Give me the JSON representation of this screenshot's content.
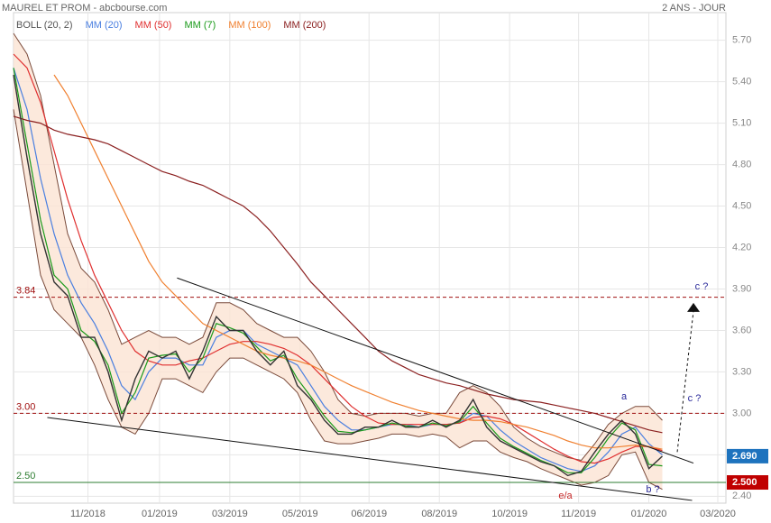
{
  "chart_data": {
    "type": "line",
    "title": "MAUREL ET PROM - abcbourse.com",
    "subtitle": "2 ANS - JOUR",
    "xlim": [
      0,
      527
    ],
    "ylim": [
      2.35,
      5.9
    ],
    "grid": true,
    "xticks": [
      {
        "value": 55,
        "label": "11/2018"
      },
      {
        "value": 108,
        "label": "01/2019"
      },
      {
        "value": 160,
        "label": "03/2019"
      },
      {
        "value": 212,
        "label": "05/2019"
      },
      {
        "value": 263,
        "label": "06/2019"
      },
      {
        "value": 315,
        "label": "08/2019"
      },
      {
        "value": 367,
        "label": "10/2019"
      },
      {
        "value": 418,
        "label": "11/2019"
      },
      {
        "value": 470,
        "label": "01/2020"
      },
      {
        "value": 521,
        "label": "03/2020"
      }
    ],
    "yticks": [
      {
        "value": 5.7,
        "label": "5.70"
      },
      {
        "value": 5.4,
        "label": "5.40"
      },
      {
        "value": 5.1,
        "label": "5.10"
      },
      {
        "value": 4.8,
        "label": "4.80"
      },
      {
        "value": 4.5,
        "label": "4.50"
      },
      {
        "value": 4.2,
        "label": "4.20"
      },
      {
        "value": 3.9,
        "label": "3.90"
      },
      {
        "value": 3.6,
        "label": "3.60"
      },
      {
        "value": 3.3,
        "label": "3.30"
      },
      {
        "value": 3.0,
        "label": "3.00"
      },
      {
        "value": 2.7,
        "label": "2.70"
      },
      {
        "value": 2.4,
        "label": "2.40"
      }
    ],
    "x": [
      0,
      10,
      20,
      30,
      40,
      50,
      60,
      70,
      80,
      90,
      100,
      110,
      120,
      130,
      140,
      150,
      160,
      170,
      180,
      190,
      200,
      210,
      220,
      230,
      240,
      250,
      260,
      270,
      280,
      290,
      300,
      310,
      320,
      330,
      340,
      350,
      360,
      370,
      380,
      390,
      400,
      410,
      420,
      430,
      440,
      450,
      460,
      470,
      480
    ],
    "price": {
      "color": "#333333",
      "values": [
        5.45,
        4.85,
        4.3,
        3.95,
        3.85,
        3.55,
        3.55,
        3.3,
        2.95,
        3.25,
        3.45,
        3.4,
        3.45,
        3.25,
        3.45,
        3.7,
        3.6,
        3.6,
        3.45,
        3.35,
        3.45,
        3.2,
        3.1,
        2.95,
        2.85,
        2.85,
        2.9,
        2.9,
        2.95,
        2.9,
        2.9,
        2.95,
        2.9,
        2.95,
        3.1,
        2.9,
        2.8,
        2.75,
        2.7,
        2.65,
        2.62,
        2.55,
        2.58,
        2.72,
        2.85,
        2.95,
        2.85,
        2.6,
        2.69
      ]
    },
    "series": [
      {
        "name": "BOLL (20, 2)",
        "color": "#7a4a3a",
        "fill": "#fbe3d3",
        "values": [
          5.75,
          5.6,
          5.3,
          4.8,
          4.3,
          4.05,
          3.95,
          3.75,
          3.5,
          3.55,
          3.6,
          3.55,
          3.55,
          3.5,
          3.55,
          3.8,
          3.8,
          3.75,
          3.65,
          3.6,
          3.55,
          3.55,
          3.45,
          3.3,
          3.1,
          3.0,
          2.98,
          3.0,
          3.0,
          3.0,
          2.98,
          3.0,
          3.0,
          3.15,
          3.2,
          3.15,
          3.05,
          2.9,
          2.82,
          2.76,
          2.72,
          2.68,
          2.66,
          2.78,
          2.92,
          3.0,
          3.05,
          3.05,
          2.95
        ],
        "lower": [
          5.2,
          4.6,
          4.0,
          3.75,
          3.65,
          3.55,
          3.35,
          3.1,
          2.9,
          2.85,
          3.0,
          3.25,
          3.25,
          3.2,
          3.15,
          3.3,
          3.4,
          3.4,
          3.35,
          3.3,
          3.25,
          3.15,
          2.95,
          2.8,
          2.78,
          2.78,
          2.8,
          2.82,
          2.85,
          2.85,
          2.83,
          2.85,
          2.83,
          2.75,
          2.8,
          2.8,
          2.72,
          2.68,
          2.65,
          2.6,
          2.56,
          2.52,
          2.48,
          2.5,
          2.55,
          2.7,
          2.72,
          2.5,
          2.45
        ]
      },
      {
        "name": "MM (20)",
        "color": "#4a7fe0",
        "values": [
          5.5,
          5.2,
          4.7,
          4.3,
          4.0,
          3.8,
          3.65,
          3.45,
          3.2,
          3.1,
          3.3,
          3.4,
          3.4,
          3.35,
          3.35,
          3.55,
          3.6,
          3.6,
          3.5,
          3.45,
          3.4,
          3.35,
          3.2,
          3.05,
          2.95,
          2.88,
          2.88,
          2.9,
          2.92,
          2.92,
          2.9,
          2.92,
          2.92,
          2.93,
          3.0,
          2.98,
          2.88,
          2.8,
          2.74,
          2.68,
          2.64,
          2.6,
          2.58,
          2.62,
          2.72,
          2.85,
          2.9,
          2.78,
          2.7
        ]
      },
      {
        "name": "MM (50)",
        "color": "#e03030",
        "values": [
          5.6,
          5.5,
          5.25,
          4.9,
          4.55,
          4.25,
          4.0,
          3.8,
          3.6,
          3.45,
          3.38,
          3.35,
          3.35,
          3.38,
          3.4,
          3.45,
          3.5,
          3.52,
          3.52,
          3.5,
          3.47,
          3.42,
          3.35,
          3.25,
          3.15,
          3.05,
          2.98,
          2.93,
          2.92,
          2.92,
          2.92,
          2.92,
          2.92,
          2.93,
          2.97,
          2.98,
          2.96,
          2.92,
          2.86,
          2.8,
          2.74,
          2.69,
          2.65,
          2.64,
          2.67,
          2.72,
          2.76,
          2.76,
          2.73
        ]
      },
      {
        "name": "MM (7)",
        "color": "#1a9a1a",
        "values": [
          5.5,
          4.95,
          4.4,
          4.0,
          3.9,
          3.6,
          3.52,
          3.35,
          3.0,
          3.15,
          3.4,
          3.42,
          3.43,
          3.3,
          3.4,
          3.65,
          3.62,
          3.58,
          3.48,
          3.38,
          3.42,
          3.25,
          3.12,
          2.98,
          2.87,
          2.86,
          2.88,
          2.9,
          2.93,
          2.91,
          2.9,
          2.93,
          2.91,
          2.94,
          3.05,
          2.93,
          2.82,
          2.76,
          2.71,
          2.66,
          2.62,
          2.57,
          2.57,
          2.68,
          2.82,
          2.93,
          2.88,
          2.63,
          2.62
        ]
      },
      {
        "name": "MM (100)",
        "color": "#f08030",
        "values": [
          null,
          null,
          null,
          5.45,
          5.3,
          5.1,
          4.9,
          4.7,
          4.5,
          4.3,
          4.1,
          3.95,
          3.85,
          3.75,
          3.65,
          3.6,
          3.55,
          3.5,
          3.45,
          3.42,
          3.4,
          3.38,
          3.35,
          3.3,
          3.25,
          3.2,
          3.16,
          3.12,
          3.08,
          3.05,
          3.02,
          3.0,
          2.98,
          2.96,
          2.95,
          2.95,
          2.94,
          2.92,
          2.9,
          2.87,
          2.84,
          2.8,
          2.77,
          2.75,
          2.75,
          2.76,
          2.77,
          2.76,
          2.74
        ]
      },
      {
        "name": "MM (200)",
        "color": "#8b2020",
        "values": [
          5.15,
          5.12,
          5.1,
          5.05,
          5.02,
          5.0,
          4.98,
          4.95,
          4.9,
          4.85,
          4.8,
          4.75,
          4.72,
          4.68,
          4.65,
          4.6,
          4.55,
          4.5,
          4.42,
          4.32,
          4.2,
          4.08,
          3.95,
          3.85,
          3.75,
          3.65,
          3.55,
          3.45,
          3.38,
          3.33,
          3.28,
          3.25,
          3.22,
          3.2,
          3.17,
          3.14,
          3.12,
          3.1,
          3.09,
          3.08,
          3.06,
          3.04,
          3.02,
          3.0,
          2.97,
          2.94,
          2.91,
          2.88,
          2.86
        ]
      }
    ],
    "levels": [
      {
        "value": 3.84,
        "label": "3.84",
        "color": "#a01010",
        "style": "dashed"
      },
      {
        "value": 3.0,
        "label": "3.00",
        "color": "#a01010",
        "style": "dashed"
      },
      {
        "value": 2.5,
        "label": "2.50",
        "color": "#2e7d32",
        "style": "solid",
        "badge": "2.500",
        "badge_color": "#c00000"
      }
    ],
    "last_price": {
      "value": 2.69,
      "label": "2.690",
      "color": "#1e73be"
    },
    "trendlines": [
      {
        "x": [
          121,
          503
        ],
        "y": [
          3.98,
          2.64
        ]
      },
      {
        "x": [
          25,
          502
        ],
        "y": [
          2.97,
          2.37
        ]
      }
    ],
    "projection": {
      "x": [
        491,
        503
      ],
      "y": [
        2.72,
        3.78
      ]
    },
    "annotations": [
      "a",
      "c ?",
      "c ?",
      "b ?",
      "e/a"
    ]
  }
}
